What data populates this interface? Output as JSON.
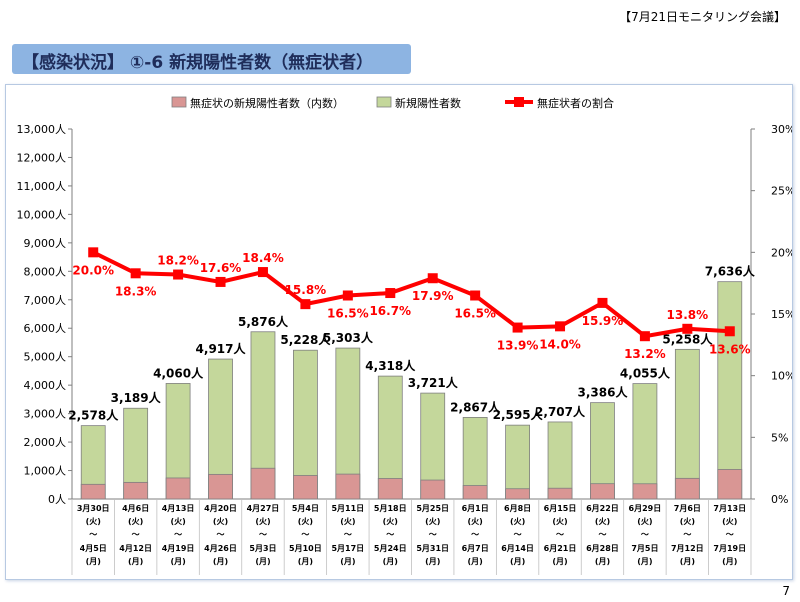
{
  "header": {
    "meeting_tag": "【7月21日モニタリング会議】",
    "title": "【感染状況】 ①-6 新規陽性者数（無症状者）",
    "page_number": "7"
  },
  "colors": {
    "total_bar": "#c4d79b",
    "asymptomatic_bar": "#d99694",
    "ratio_line": "#ff0000",
    "title_bar": "#8db4e2"
  },
  "chart_data": {
    "type": "bar",
    "title": "",
    "legend": [
      "無症状の新規陽性者数（内数）",
      "新規陽性者数",
      "無症状者の割合"
    ],
    "y_left": {
      "ylim": [
        0,
        13000
      ],
      "ticks": [
        "0人",
        "1,000人",
        "2,000人",
        "3,000人",
        "4,000人",
        "5,000人",
        "6,000人",
        "7,000人",
        "8,000人",
        "9,000人",
        "10,000人",
        "11,000人",
        "12,000人",
        "13,000人"
      ]
    },
    "y_right": {
      "ylim": [
        0,
        30
      ],
      "ticks": [
        "0%",
        "5%",
        "10%",
        "15%",
        "20%",
        "25%",
        "30%"
      ]
    },
    "categories": [
      {
        "start": "3月30日",
        "day1": "(火)",
        "tilde": "～",
        "end": "4月5日",
        "day2": "(月)"
      },
      {
        "start": "4月6日",
        "day1": "(火)",
        "tilde": "～",
        "end": "4月12日",
        "day2": "(月)"
      },
      {
        "start": "4月13日",
        "day1": "(火)",
        "tilde": "～",
        "end": "4月19日",
        "day2": "(月)"
      },
      {
        "start": "4月20日",
        "day1": "(火)",
        "tilde": "～",
        "end": "4月26日",
        "day2": "(月)"
      },
      {
        "start": "4月27日",
        "day1": "(火)",
        "tilde": "～",
        "end": "5月3日",
        "day2": "(月)"
      },
      {
        "start": "5月4日",
        "day1": "(火)",
        "tilde": "～",
        "end": "5月10日",
        "day2": "(月)"
      },
      {
        "start": "5月11日",
        "day1": "(火)",
        "tilde": "～",
        "end": "5月17日",
        "day2": "(月)"
      },
      {
        "start": "5月18日",
        "day1": "(火)",
        "tilde": "～",
        "end": "5月24日",
        "day2": "(月)"
      },
      {
        "start": "5月25日",
        "day1": "(火)",
        "tilde": "～",
        "end": "5月31日",
        "day2": "(月)"
      },
      {
        "start": "6月1日",
        "day1": "(火)",
        "tilde": "～",
        "end": "6月7日",
        "day2": "(月)"
      },
      {
        "start": "6月8日",
        "day1": "(火)",
        "tilde": "～",
        "end": "6月14日",
        "day2": "(月)"
      },
      {
        "start": "6月15日",
        "day1": "(火)",
        "tilde": "～",
        "end": "6月21日",
        "day2": "(月)"
      },
      {
        "start": "6月22日",
        "day1": "(火)",
        "tilde": "～",
        "end": "6月28日",
        "day2": "(月)"
      },
      {
        "start": "6月29日",
        "day1": "(火)",
        "tilde": "～",
        "end": "7月5日",
        "day2": "(月)"
      },
      {
        "start": "7月6日",
        "day1": "(火)",
        "tilde": "～",
        "end": "7月12日",
        "day2": "(月)"
      },
      {
        "start": "7月13日",
        "day1": "(火)",
        "tilde": "～",
        "end": "7月19日",
        "day2": "(月)"
      }
    ],
    "series": [
      {
        "name": "新規陽性者数",
        "values": [
          2578,
          3189,
          4060,
          4917,
          5876,
          5228,
          5303,
          4318,
          3721,
          2867,
          2595,
          2707,
          3386,
          4055,
          5258,
          7636
        ],
        "labels": [
          "2,578人",
          "3,189人",
          "4,060人",
          "4,917人",
          "5,876人",
          "5,228人",
          "5,303人",
          "4,318人",
          "3,721人",
          "2,867人",
          "2,595人",
          "2,707人",
          "3,386人",
          "4,055人",
          "5,258人",
          "7,636人"
        ]
      },
      {
        "name": "無症状の新規陽性者数（内数）",
        "values": [
          516,
          584,
          739,
          865,
          1081,
          826,
          875,
          721,
          666,
          473,
          361,
          379,
          538,
          535,
          726,
          1038
        ]
      },
      {
        "name": "無症状者の割合",
        "values": [
          20.0,
          18.3,
          18.2,
          17.6,
          18.4,
          15.8,
          16.5,
          16.7,
          17.9,
          16.5,
          13.9,
          14.0,
          15.9,
          13.2,
          13.8,
          13.6
        ],
        "labels": [
          "20.0%",
          "18.3%",
          "18.2%",
          "17.6%",
          "18.4%",
          "15.8%",
          "16.5%",
          "16.7%",
          "17.9%",
          "16.5%",
          "13.9%",
          "14.0%",
          "15.9%",
          "13.2%",
          "13.8%",
          "13.6%"
        ]
      }
    ]
  }
}
